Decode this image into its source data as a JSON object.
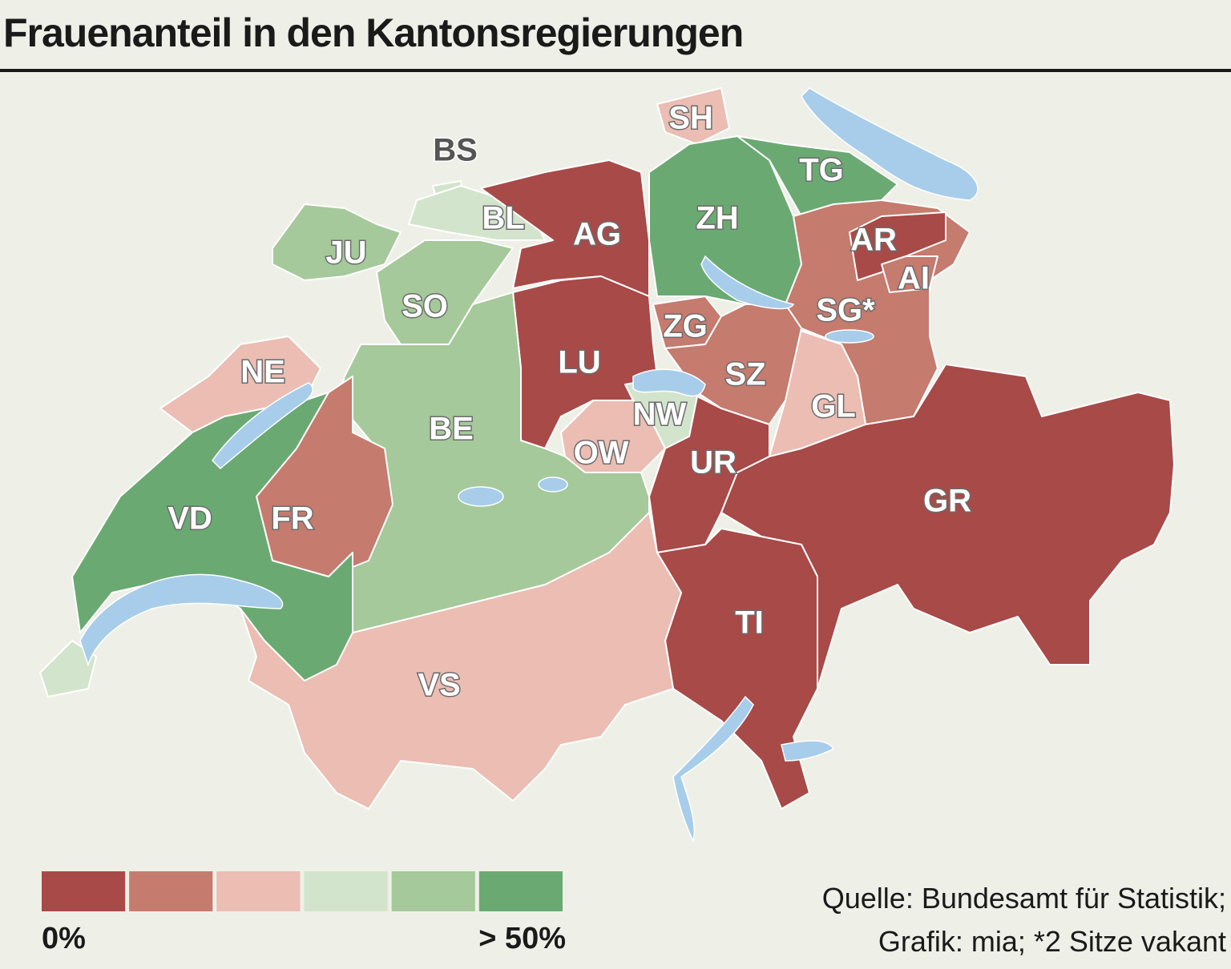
{
  "title": "Frauenanteil in den Kantonsregierungen",
  "regions": [
    {
      "label": "SH",
      "class": 2
    },
    {
      "label": "BS",
      "class": 3
    },
    {
      "label": "BL",
      "class": 3
    },
    {
      "label": "JU",
      "class": 4
    },
    {
      "label": "SO",
      "class": 4
    },
    {
      "label": "AG",
      "class": 0
    },
    {
      "label": "ZH",
      "class": 5
    },
    {
      "label": "TG",
      "class": 5
    },
    {
      "label": "SG*",
      "class": 1
    },
    {
      "label": "AR",
      "class": 0
    },
    {
      "label": "AI",
      "class": 1
    },
    {
      "label": "GL",
      "class": 2
    },
    {
      "label": "ZG",
      "class": 1
    },
    {
      "label": "SZ",
      "class": 1
    },
    {
      "label": "LU",
      "class": 0
    },
    {
      "label": "NW",
      "class": 3
    },
    {
      "label": "OW",
      "class": 2
    },
    {
      "label": "UR",
      "class": 0
    },
    {
      "label": "GR",
      "class": 0
    },
    {
      "label": "TI",
      "class": 0
    },
    {
      "label": "VS",
      "class": 2
    },
    {
      "label": "BE",
      "class": 4
    },
    {
      "label": "FR",
      "class": 1
    },
    {
      "label": "NE",
      "class": 2
    },
    {
      "label": "VD",
      "class": 5
    },
    {
      "label": null,
      "class": 3
    }
  ],
  "legend": {
    "colors": [
      "#a84a48",
      "#c57b6e",
      "#ebbdb3",
      "#d3e4cc",
      "#a5c99a",
      "#6aaa72"
    ],
    "min_label": "0%",
    "max_label": "> 50%"
  },
  "source": [
    "Quelle: Bundesamt für Statistik;",
    "Grafik: mia; *2 Sitze vakant"
  ]
}
